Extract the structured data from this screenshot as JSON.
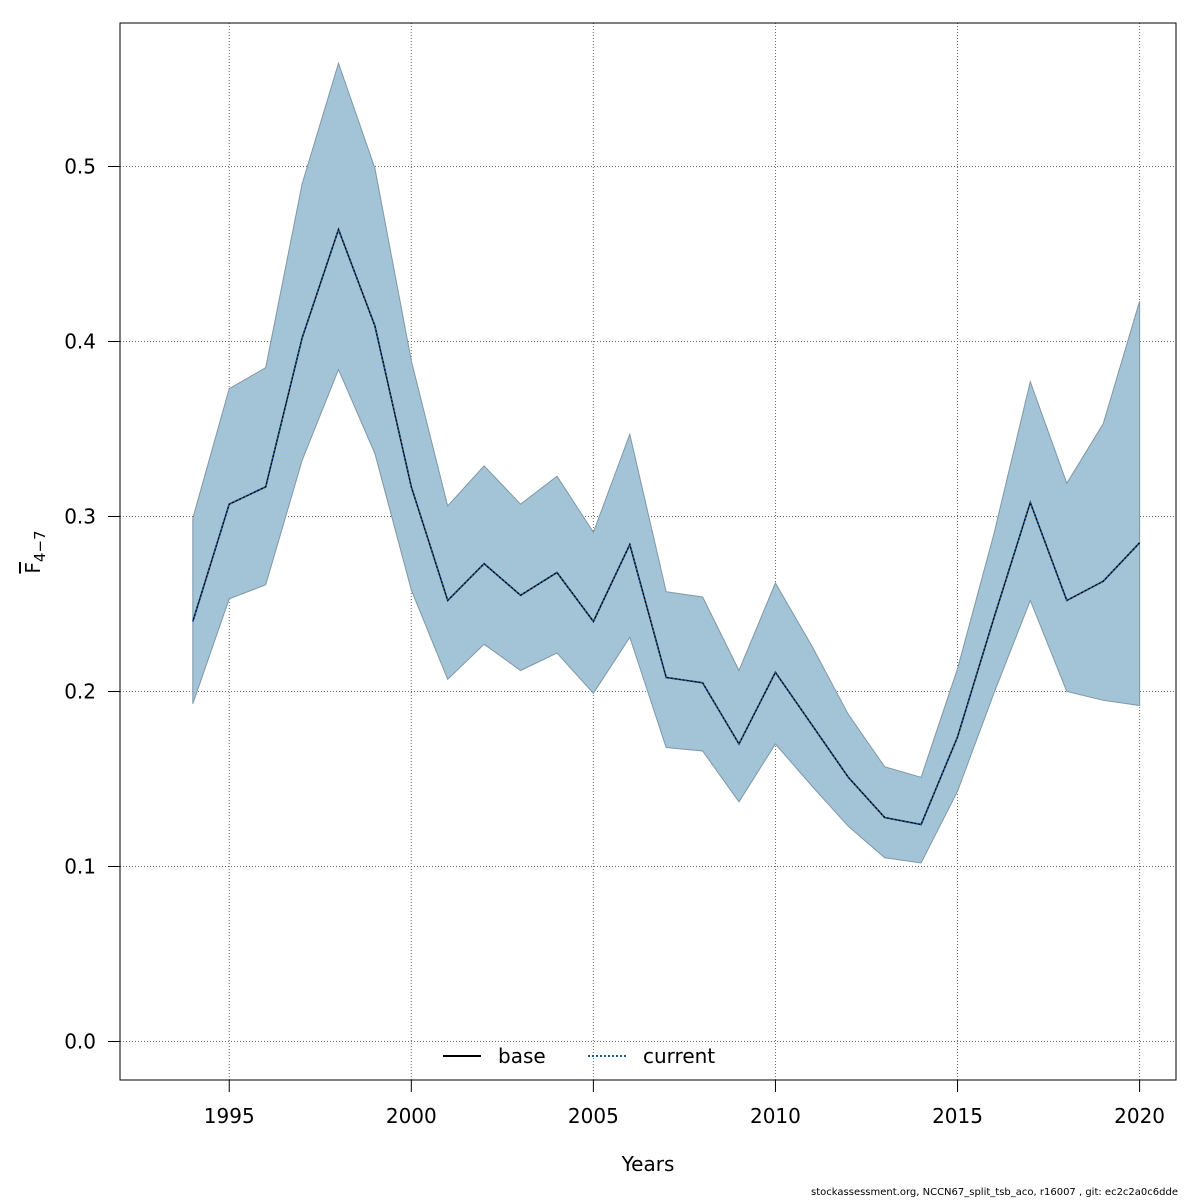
{
  "chart_data": {
    "type": "line",
    "xlabel": "Years",
    "ylabel": {
      "main": "F",
      "subscript": "4−7"
    },
    "xlim": [
      1992,
      2021
    ],
    "ylim": [
      -0.022,
      0.582
    ],
    "x_ticks": [
      1995,
      2000,
      2005,
      2010,
      2015,
      2020
    ],
    "y_ticks": [
      0.0,
      0.1,
      0.2,
      0.3,
      0.4,
      0.5
    ],
    "y_tick_labels": [
      "0.0",
      "0.1",
      "0.2",
      "0.3",
      "0.4",
      "0.5"
    ],
    "grid": true,
    "legend_position": "bottom-center",
    "x": [
      1994,
      1995,
      1996,
      1997,
      1998,
      1999,
      2000,
      2001,
      2002,
      2003,
      2004,
      2005,
      2006,
      2007,
      2008,
      2009,
      2010,
      2011,
      2012,
      2013,
      2014,
      2015,
      2016,
      2017,
      2018,
      2019,
      2020
    ],
    "series": [
      {
        "name": "base",
        "line_style": "solid",
        "color": "#000000",
        "values": [
          0.24,
          0.307,
          0.317,
          0.402,
          0.464,
          0.409,
          0.317,
          0.252,
          0.273,
          0.255,
          0.268,
          0.24,
          0.284,
          0.208,
          0.205,
          0.17,
          0.211,
          0.181,
          0.151,
          0.128,
          0.124,
          0.174,
          0.242,
          0.308,
          0.252,
          0.263,
          0.285
        ]
      },
      {
        "name": "current",
        "line_style": "dotted",
        "color": "#1a5a99",
        "values": [
          0.24,
          0.307,
          0.317,
          0.402,
          0.464,
          0.409,
          0.317,
          0.252,
          0.273,
          0.255,
          0.268,
          0.24,
          0.284,
          0.208,
          0.205,
          0.17,
          0.211,
          0.181,
          0.151,
          0.128,
          0.124,
          0.174,
          0.242,
          0.308,
          0.252,
          0.263,
          0.285
        ]
      }
    ],
    "confidence_band": {
      "color": "#a3c3d6",
      "edge_color": "#7f98a6",
      "upper": [
        0.299,
        0.373,
        0.385,
        0.49,
        0.559,
        0.499,
        0.389,
        0.306,
        0.329,
        0.307,
        0.323,
        0.291,
        0.347,
        0.257,
        0.254,
        0.212,
        0.262,
        0.226,
        0.187,
        0.157,
        0.151,
        0.213,
        0.29,
        0.377,
        0.319,
        0.353,
        0.423
      ],
      "lower": [
        0.193,
        0.253,
        0.261,
        0.332,
        0.384,
        0.336,
        0.258,
        0.207,
        0.227,
        0.212,
        0.222,
        0.199,
        0.231,
        0.168,
        0.166,
        0.137,
        0.17,
        0.146,
        0.123,
        0.105,
        0.102,
        0.143,
        0.199,
        0.252,
        0.2,
        0.195,
        0.192
      ]
    }
  },
  "footer": "stockassessment.org, NCCN67_split_tsb_aco, r16007 , git: ec2c2a0c6dde"
}
